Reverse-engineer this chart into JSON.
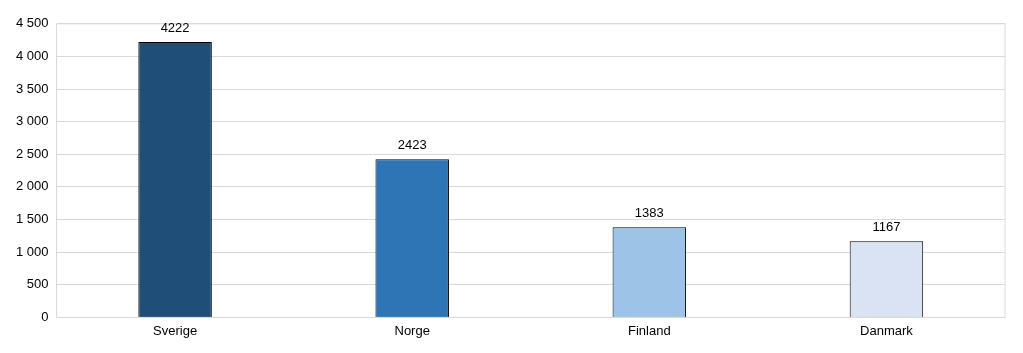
{
  "chart_data": {
    "type": "bar",
    "categories": [
      "Sverige",
      "Norge",
      "Finland",
      "Danmark"
    ],
    "values": [
      4222,
      2423,
      1383,
      1167
    ],
    "colors": [
      "#1f4e79",
      "#2e75b6",
      "#9dc3e6",
      "#dae3f3"
    ],
    "ylim": [
      0,
      4500
    ],
    "yticks": [
      {
        "value": 0,
        "label": "0"
      },
      {
        "value": 500,
        "label": "500"
      },
      {
        "value": 1000,
        "label": "1 000"
      },
      {
        "value": 1500,
        "label": "1 500"
      },
      {
        "value": 2000,
        "label": "2 000"
      },
      {
        "value": 2500,
        "label": "2 500"
      },
      {
        "value": 3000,
        "label": "3 000"
      },
      {
        "value": 3500,
        "label": "3 500"
      },
      {
        "value": 4000,
        "label": "4 000"
      },
      {
        "value": 4500,
        "label": "4 500"
      }
    ],
    "grid": "y",
    "data_labels": true,
    "legend": false
  }
}
